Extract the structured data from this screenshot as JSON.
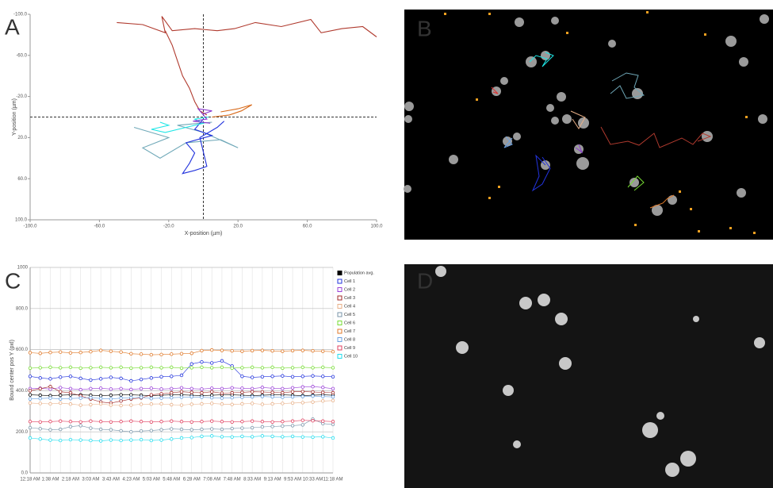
{
  "panel_labels": [
    "A",
    "B",
    "C",
    "D"
  ],
  "chart_data": [
    {
      "type": "trajectory",
      "xlabel": "X-position (µm)",
      "ylabel": "Y-position (µm)",
      "xlim": [
        -100,
        100
      ],
      "ylim": [
        -100,
        100
      ],
      "y_inverted": true,
      "crosshair": true,
      "xticks": [
        {
          "value": -100,
          "label": "-100.0"
        },
        {
          "value": -60,
          "label": "-60.0"
        },
        {
          "value": -20,
          "label": "-20.0"
        },
        {
          "value": 20,
          "label": "20.0"
        },
        {
          "value": 60,
          "label": "60.0"
        },
        {
          "value": 100,
          "label": "100.0"
        }
      ],
      "yticks": [
        {
          "value": -100,
          "label": "-100.0"
        },
        {
          "value": -60,
          "label": "-60.0"
        },
        {
          "value": -20,
          "label": "-20.0"
        },
        {
          "value": 20,
          "label": "20.0"
        },
        {
          "value": 60,
          "label": "60.0"
        },
        {
          "value": 100,
          "label": "100.0"
        }
      ],
      "series": [
        {
          "color": "#b03a2e",
          "x": [
            100,
            92,
            80,
            68,
            62,
            45,
            30,
            18,
            8,
            -5,
            -18,
            -24,
            -22,
            -35,
            -50
          ],
          "values": [
            -78,
            -88,
            -86,
            -82,
            -95,
            -88,
            -92,
            -86,
            -84,
            -86,
            -84,
            -98,
            -82,
            -90,
            -92
          ]
        },
        {
          "color": "#b03a2e",
          "x": [
            -22,
            -18,
            -15,
            -12,
            -8,
            -5,
            -2,
            2
          ],
          "values": [
            -84,
            -70,
            -55,
            -40,
            -28,
            -15,
            -6,
            -2
          ]
        },
        {
          "color": "#6fa8b8",
          "x": [
            -40,
            -20,
            -35,
            -25,
            -10,
            10,
            20,
            0,
            -15,
            5
          ],
          "values": [
            10,
            20,
            30,
            40,
            25,
            22,
            30,
            15,
            8,
            5
          ]
        },
        {
          "color": "#2233dd",
          "x": [
            0,
            -5,
            5,
            -10,
            -5,
            -8,
            -12,
            -5,
            2,
            -2,
            8,
            12
          ],
          "values": [
            2,
            12,
            18,
            25,
            35,
            45,
            55,
            52,
            48,
            20,
            10,
            4
          ]
        },
        {
          "color": "#1ee6e6",
          "x": [
            -25,
            -20,
            -30,
            -22,
            -10,
            0,
            -5,
            3
          ],
          "values": [
            5,
            8,
            12,
            15,
            10,
            6,
            2,
            0
          ]
        },
        {
          "color": "#d86a1a",
          "x": [
            10,
            20,
            28,
            22,
            15,
            5
          ],
          "values": [
            -5,
            -8,
            -12,
            -6,
            -2,
            0
          ]
        },
        {
          "color": "#8a3bd0",
          "x": [
            0,
            5,
            -3,
            2,
            -6,
            4
          ],
          "values": [
            -3,
            -6,
            -8,
            2,
            4,
            6
          ]
        }
      ]
    },
    {
      "type": "line",
      "ylabel": "Bound center pos Y (pxl)",
      "ylim": [
        0,
        1000
      ],
      "yticks": [
        {
          "value": 0,
          "label": "0.0"
        },
        {
          "value": 200,
          "label": "200.0"
        },
        {
          "value": 400,
          "label": "400.0"
        },
        {
          "value": 600,
          "label": "600.0"
        },
        {
          "value": 800,
          "label": "800.0"
        },
        1000
      ],
      "grid": true,
      "legend": "right",
      "categories": [
        "12:18 AM",
        null,
        "1:38 AM",
        null,
        "2:18 AM",
        null,
        "3:03 AM",
        null,
        "3:43 AM",
        null,
        "4:23 AM",
        null,
        "5:03 AM",
        null,
        "5:48 AM",
        null,
        "6:28 AM",
        null,
        "7:08 AM",
        null,
        "7:48 AM",
        null,
        "8:33 AM",
        null,
        "9:13 AM",
        null,
        "9:53 AM",
        null,
        "10:33 AM",
        null,
        "11:18 AM"
      ],
      "series": [
        {
          "name": "Population avg.",
          "color": "#000000",
          "values": [
            380,
            378,
            376,
            378,
            380,
            380,
            378,
            376,
            378,
            380,
            380,
            378,
            376,
            378,
            380,
            380,
            378,
            376,
            378,
            380,
            380,
            378,
            376,
            378,
            380,
            380,
            378,
            376,
            378,
            380,
            378
          ]
        },
        {
          "name": "Cell 1",
          "color": "#2233dd",
          "values": [
            470,
            462,
            458,
            466,
            470,
            460,
            452,
            458,
            465,
            460,
            448,
            455,
            462,
            468,
            470,
            475,
            530,
            540,
            535,
            545,
            520,
            470,
            465,
            468,
            470,
            472,
            468,
            470,
            472,
            470,
            468
          ]
        },
        {
          "name": "Cell 2",
          "color": "#9a40d8",
          "values": [
            410,
            412,
            408,
            415,
            410,
            405,
            410,
            412,
            408,
            410,
            406,
            410,
            412,
            408,
            410,
            414,
            410,
            408,
            412,
            410,
            414,
            412,
            410,
            416,
            412,
            410,
            414,
            418,
            420,
            416,
            410
          ]
        },
        {
          "name": "Cell 3",
          "color": "#a02828",
          "values": [
            400,
            410,
            420,
            395,
            390,
            375,
            360,
            345,
            340,
            350,
            360,
            365,
            380,
            385,
            390,
            395,
            392,
            390,
            395,
            388,
            390,
            392,
            395,
            394,
            392,
            390,
            395,
            396,
            394,
            392,
            390
          ]
        },
        {
          "name": "Cell 4",
          "color": "#e8b088",
          "values": [
            340,
            338,
            336,
            340,
            335,
            330,
            332,
            336,
            330,
            328,
            330,
            334,
            335,
            336,
            332,
            330,
            334,
            336,
            338,
            335,
            333,
            336,
            338,
            334,
            336,
            338,
            340,
            342,
            345,
            350,
            352
          ]
        },
        {
          "name": "Cell 5",
          "color": "#7a96aa",
          "values": [
            220,
            215,
            210,
            212,
            225,
            230,
            218,
            212,
            210,
            205,
            200,
            204,
            206,
            210,
            214,
            212,
            210,
            212,
            214,
            212,
            216,
            218,
            220,
            224,
            226,
            228,
            230,
            234,
            262,
            240,
            236
          ]
        },
        {
          "name": "Cell 6",
          "color": "#77dd33",
          "values": [
            510,
            512,
            514,
            512,
            514,
            510,
            512,
            514,
            512,
            514,
            510,
            512,
            514,
            512,
            514,
            510,
            512,
            514,
            512,
            514,
            510,
            512,
            514,
            512,
            514,
            510,
            512,
            514,
            512,
            514,
            512
          ]
        },
        {
          "name": "Cell 7",
          "color": "#e07a2a",
          "values": [
            585,
            582,
            586,
            588,
            584,
            586,
            590,
            596,
            592,
            588,
            580,
            578,
            575,
            576,
            578,
            580,
            582,
            595,
            598,
            596,
            594,
            592,
            595,
            596,
            594,
            592,
            595,
            596,
            594,
            592,
            590
          ]
        },
        {
          "name": "Cell 8",
          "color": "#6aa0e0",
          "values": [
            360,
            362,
            364,
            360,
            362,
            364,
            366,
            362,
            360,
            364,
            366,
            368,
            362,
            364,
            366,
            368,
            370,
            368,
            366,
            364,
            366,
            368,
            370,
            372,
            370,
            368,
            370,
            372,
            374,
            372,
            370
          ]
        },
        {
          "name": "Cell 9",
          "color": "#e04060",
          "values": [
            250,
            248,
            250,
            252,
            250,
            248,
            252,
            250,
            248,
            250,
            252,
            250,
            248,
            250,
            252,
            250,
            248,
            250,
            252,
            250,
            248,
            250,
            252,
            250,
            248,
            250,
            252,
            256,
            254,
            252,
            250
          ]
        },
        {
          "name": "Cell 10",
          "color": "#22ddee",
          "values": [
            170,
            165,
            160,
            158,
            162,
            160,
            158,
            156,
            160,
            158,
            160,
            162,
            158,
            160,
            165,
            170,
            172,
            178,
            180,
            176,
            175,
            178,
            176,
            180,
            178,
            176,
            178,
            175,
            174,
            176,
            170
          ]
        }
      ]
    }
  ]
}
